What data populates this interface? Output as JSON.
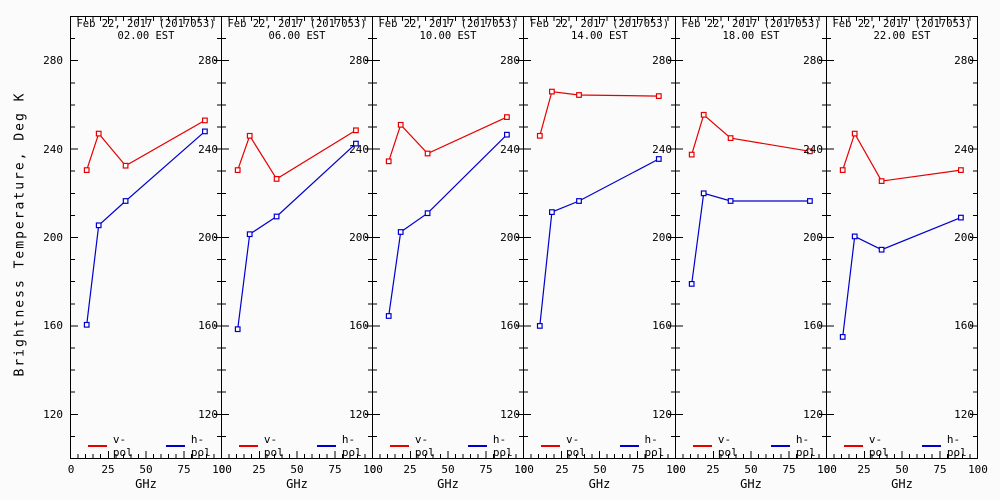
{
  "axes": {
    "x": {
      "label": "GHz",
      "min": 0,
      "max": 100,
      "major_ticks": [
        0,
        25,
        50,
        75,
        100
      ],
      "minor_step": 5
    },
    "y": {
      "label": "Brightness Temperature, Deg K",
      "min": 100,
      "max": 300,
      "major_ticks": [
        280,
        240,
        200,
        160,
        120
      ],
      "minor_step": 10
    }
  },
  "colors": {
    "v_pol": "#e60000",
    "h_pol": "#0000cd",
    "axis": "#000000",
    "background": "#fbfbfb"
  },
  "legend": {
    "v_pol": "v-pol",
    "h_pol": "h-pol"
  },
  "chart_data": [
    {
      "type": "line",
      "title_line1": "Feb 22, 2017 (2017053)",
      "title_line2": "02.00 EST",
      "x_ghz": [
        10.7,
        18.7,
        36.5,
        89.0
      ],
      "series": [
        {
          "name": "v-pol",
          "values": [
            230.5,
            247.0,
            232.5,
            253.0
          ]
        },
        {
          "name": "h-pol",
          "values": [
            160.5,
            205.5,
            216.5,
            248.0
          ]
        }
      ]
    },
    {
      "type": "line",
      "title_line1": "Feb 22, 2017 (2017053)",
      "title_line2": "06.00 EST",
      "x_ghz": [
        10.7,
        18.7,
        36.5,
        89.0
      ],
      "series": [
        {
          "name": "v-pol",
          "values": [
            230.5,
            246.0,
            226.5,
            248.5
          ]
        },
        {
          "name": "h-pol",
          "values": [
            158.5,
            201.5,
            209.5,
            242.5
          ]
        }
      ]
    },
    {
      "type": "line",
      "title_line1": "Feb 22, 2017 (2017053)",
      "title_line2": "10.00 EST",
      "x_ghz": [
        10.7,
        18.7,
        36.5,
        89.0
      ],
      "series": [
        {
          "name": "v-pol",
          "values": [
            234.5,
            251.0,
            238.0,
            254.5
          ]
        },
        {
          "name": "h-pol",
          "values": [
            164.5,
            202.5,
            211.0,
            246.5
          ]
        }
      ]
    },
    {
      "type": "line",
      "title_line1": "Feb 22, 2017 (2017053)",
      "title_line2": "14.00 EST",
      "x_ghz": [
        10.7,
        18.7,
        36.5,
        89.0
      ],
      "series": [
        {
          "name": "v-pol",
          "values": [
            246.0,
            266.0,
            264.5,
            264.0
          ]
        },
        {
          "name": "h-pol",
          "values": [
            160.0,
            211.5,
            216.5,
            235.5
          ]
        }
      ]
    },
    {
      "type": "line",
      "title_line1": "Feb 22, 2017 (2017053)",
      "title_line2": "18.00 EST",
      "x_ghz": [
        10.7,
        18.7,
        36.5,
        89.0
      ],
      "series": [
        {
          "name": "v-pol",
          "values": [
            237.5,
            255.5,
            245.0,
            239.0
          ]
        },
        {
          "name": "h-pol",
          "values": [
            179.0,
            220.0,
            216.5,
            216.5
          ]
        }
      ]
    },
    {
      "type": "line",
      "title_line1": "Feb 22, 2017 (2017053)",
      "title_line2": "22.00 EST",
      "x_ghz": [
        10.7,
        18.7,
        36.5,
        89.0
      ],
      "series": [
        {
          "name": "v-pol",
          "values": [
            230.5,
            247.0,
            225.5,
            230.5
          ]
        },
        {
          "name": "h-pol",
          "values": [
            155.0,
            200.5,
            194.5,
            209.0
          ]
        }
      ]
    }
  ]
}
